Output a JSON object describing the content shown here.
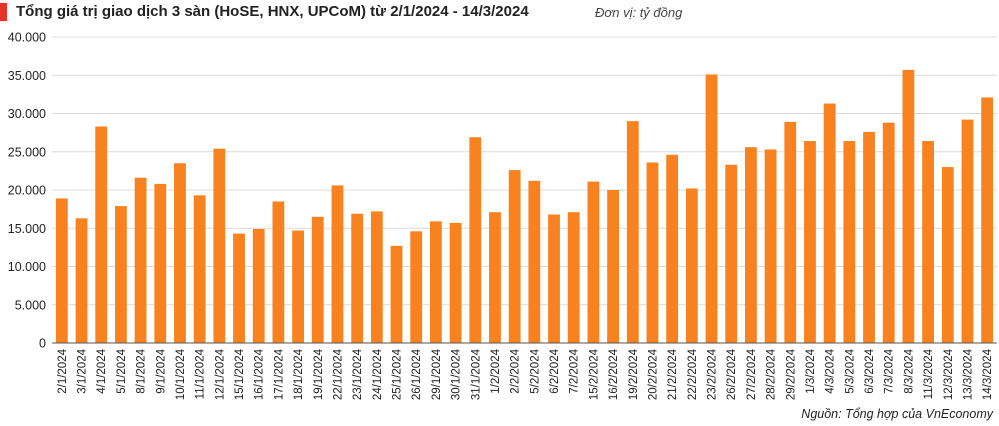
{
  "header": {
    "title": "Tổng giá trị giao dịch 3 sàn (HoSE, HNX, UPCoM) từ 2/1/2024 - 14/3/2024",
    "unit": "Đơn vị: tỷ đồng"
  },
  "footer": {
    "source": "Nguồn: Tổng hợp của VnEconomy"
  },
  "colors": {
    "bar": "#f7821f",
    "accent": "#e8312a",
    "grid": "#dcdcdc"
  },
  "chart_data": {
    "type": "bar",
    "title": "Tổng giá trị giao dịch 3 sàn (HoSE, HNX, UPCoM) từ 2/1/2024 - 14/3/2024",
    "ylabel": "Đơn vị: tỷ đồng",
    "xlabel": "",
    "ylim": [
      0,
      40000
    ],
    "yticks": [
      0,
      5000,
      10000,
      15000,
      20000,
      25000,
      30000,
      35000,
      40000
    ],
    "ytick_labels": [
      "0",
      "5.000",
      "10.000",
      "15.000",
      "20.000",
      "25.000",
      "30.000",
      "35.000",
      "40.000"
    ],
    "grid": true,
    "categories": [
      "2/1/2024",
      "3/1/2024",
      "4/1/2024",
      "5/1/2024",
      "8/1/2024",
      "9/1/2024",
      "10/1/2024",
      "11/1/2024",
      "12/1/2024",
      "15/1/2024",
      "16/1/2024",
      "17/1/2024",
      "18/1/2024",
      "19/1/2024",
      "22/1/2024",
      "23/1/2024",
      "24/1/2024",
      "25/1/2024",
      "26/1/2024",
      "29/1/2024",
      "30/1/2024",
      "31/1/2024",
      "1/2/2024",
      "2/2/2024",
      "5/2/2024",
      "6/2/2024",
      "7/2/2024",
      "15/2/2024",
      "16/2/2024",
      "19/2/2024",
      "20/2/2024",
      "21/2/2024",
      "22/2/2024",
      "23/2/2024",
      "26/2/2024",
      "27/2/2024",
      "28/2/2024",
      "29/2/2024",
      "1/3/2024",
      "4/3/2024",
      "5/3/2024",
      "6/3/2024",
      "7/3/2024",
      "8/3/2024",
      "11/3/2024",
      "12/3/2024",
      "13/3/2024",
      "14/3/2024"
    ],
    "values": [
      18900,
      16300,
      28300,
      17900,
      21600,
      20800,
      23500,
      19300,
      25400,
      14300,
      14900,
      18500,
      14700,
      16500,
      20600,
      16900,
      17200,
      12700,
      14600,
      15900,
      15700,
      26900,
      17100,
      22600,
      21200,
      16800,
      17100,
      21100,
      20000,
      29000,
      23600,
      24600,
      20200,
      35100,
      23300,
      25600,
      25300,
      28900,
      26400,
      31300,
      26400,
      27600,
      28800,
      35700,
      26400,
      23000,
      29200,
      32100
    ]
  }
}
